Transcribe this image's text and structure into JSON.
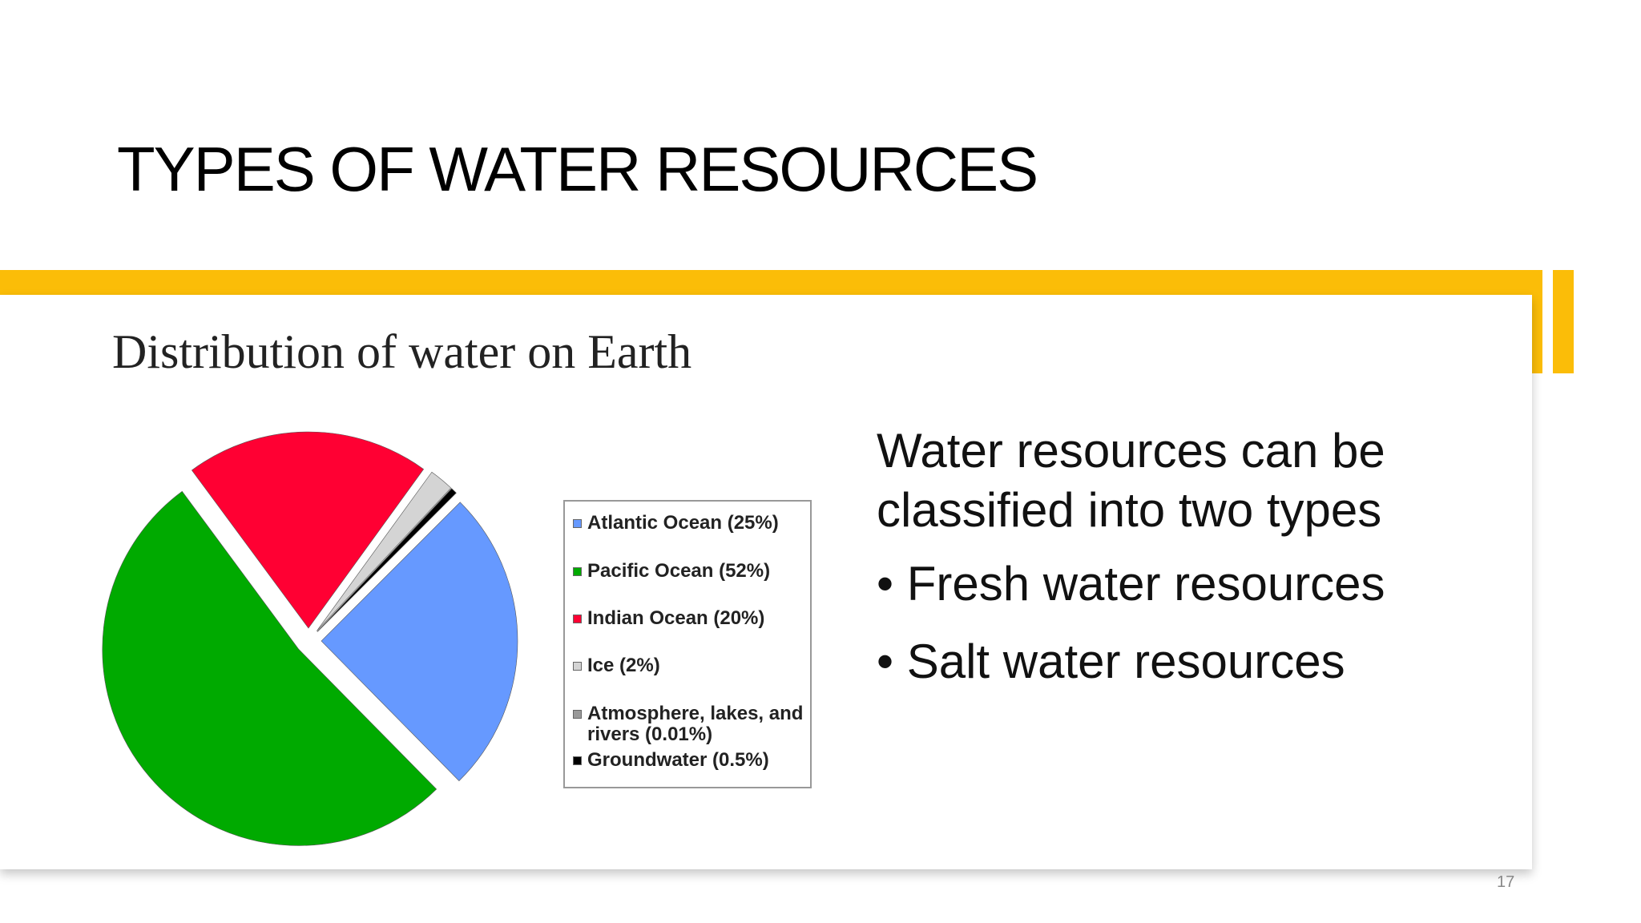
{
  "slide": {
    "title": "TYPES OF WATER RESOURCES",
    "body": "Water resources can be classified into two types",
    "bullets": [
      "Fresh water resources",
      "Salt water resources"
    ],
    "page_number": "17"
  },
  "chart_data": {
    "type": "pie",
    "title": "Distribution of water on Earth",
    "categories": [
      "Atlantic Ocean (25%)",
      "Pacific Ocean (52%)",
      "Indian Ocean (20%)",
      "Ice (2%)",
      "Atmosphere, lakes, and rivers (0.01%)",
      "Groundwater (0.5%)"
    ],
    "values": [
      25,
      52,
      20,
      2,
      0.01,
      0.5
    ],
    "colors": [
      "#6699ff",
      "#00aa00",
      "#ff0033",
      "#d4d4d4",
      "#999999",
      "#000000"
    ]
  }
}
